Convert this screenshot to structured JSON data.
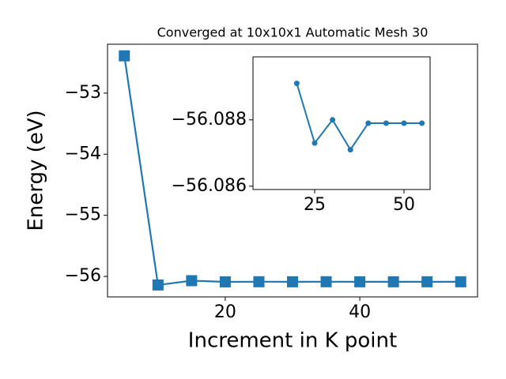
{
  "chart_data": [
    {
      "type": "line",
      "title": "Converged at 10x10x1 Automatic Mesh 30",
      "x_label": "Increment in K point",
      "y_label": "Energy (eV)",
      "x": [
        5,
        10,
        15,
        20,
        25,
        30,
        35,
        40,
        45,
        50,
        55
      ],
      "values": [
        -52.39,
        -56.14,
        -56.07,
        -56.0891,
        -56.0873,
        -56.088,
        -56.0871,
        -56.0879,
        -56.0879,
        -56.0879,
        -56.0879
      ],
      "color": "#1f77b4",
      "marker": "square",
      "xlim": [
        2.5,
        57.5
      ],
      "xticks": [
        20,
        40
      ],
      "ylim": [
        -56.335,
        -52.2
      ],
      "yticks": [
        {
          "value": -56,
          "label": "−56"
        },
        {
          "value": -55,
          "label": "−55"
        },
        {
          "value": -54,
          "label": "−54"
        },
        {
          "value": -53,
          "label": "−53"
        }
      ]
    },
    {
      "type": "line",
      "x": [
        20,
        25,
        30,
        35,
        40,
        45,
        50,
        55
      ],
      "values": [
        -56.0891,
        -56.0873,
        -56.088,
        -56.0871,
        -56.0879,
        -56.0879,
        -56.0879,
        -56.0879
      ],
      "color": "#1f77b4",
      "marker": "circle",
      "xlim": [
        7.75,
        57.3
      ],
      "xticks": [
        25,
        50
      ],
      "ylim": [
        -56.0859,
        -56.0899
      ],
      "yticks": [
        {
          "value": -56.088,
          "label": "−56.088"
        },
        {
          "value": -56.086,
          "label": "−56.086"
        }
      ]
    }
  ]
}
